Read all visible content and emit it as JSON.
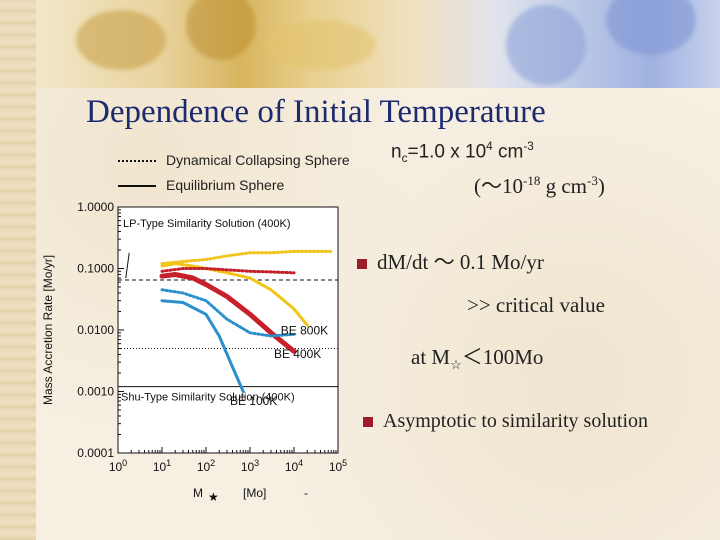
{
  "slide": {
    "title": "Dependence of Initial Temperature",
    "legend_dotted": "Dynamical Collapsing Sphere",
    "legend_solid": "Equilibrium Sphere",
    "nc": {
      "pre": "n",
      "sub": "c",
      "mid": "=1.0 x 10",
      "exp": "4",
      "post": " cm",
      "exp2": "-3"
    },
    "rho": {
      "pre": "(～10",
      "exp": "-18",
      "mid": " g cm",
      "exp2": "-3",
      "post": ")"
    },
    "bullet1": "dM/dt ～ 0.1 Mo/yr",
    "line2": ">> critical value",
    "line3": {
      "pre": "at M",
      "sub": "☆",
      "post": "＜100Mo"
    },
    "bullet2": "Asymptotic to similarity solution"
  },
  "colors": {
    "bullet": "#9b1b2a",
    "title": "#1e2a6e",
    "yellow": "#f2c418",
    "red": "#c8202a",
    "blue": "#2a8fcc"
  },
  "chart_data": {
    "type": "line",
    "xscale": "log",
    "yscale": "log",
    "xlim": [
      1,
      100000
    ],
    "ylim": [
      0.0001,
      1
    ],
    "xticks": [
      {
        "base": "10",
        "exp": "0"
      },
      {
        "base": "10",
        "exp": "1"
      },
      {
        "base": "10",
        "exp": "2"
      },
      {
        "base": "10",
        "exp": "3"
      },
      {
        "base": "10",
        "exp": "4"
      },
      {
        "base": "10",
        "exp": "5"
      }
    ],
    "yticks": [
      "0.0001",
      "0.0010",
      "0.0100",
      "0.1000",
      "1.0000"
    ],
    "ylabel": "Mass Accretion Rate  [Mo/yr]",
    "xlabel_pre": "M",
    "xlabel_star": "★",
    "xlabel_unit": "[Mo]",
    "xlabel_dash": "-",
    "reference_lines": [
      {
        "label": "LP-Type Similarity Solution (400K)",
        "y": 0.065,
        "style": "dashed"
      },
      {
        "label": "Shu-Type Similarity Solution (400K)",
        "y": 0.0012,
        "style": "solid"
      },
      {
        "y": 0.005,
        "style": "dotted"
      }
    ],
    "series": [
      {
        "name": "BE 800K",
        "color": "#f2c418",
        "style": "solid",
        "width": 3,
        "x": [
          10,
          20,
          50,
          100,
          300,
          1000,
          3000,
          10000,
          20000
        ],
        "y": [
          0.11,
          0.12,
          0.11,
          0.1,
          0.085,
          0.07,
          0.045,
          0.022,
          0.012
        ]
      },
      {
        "color": "#f2c418",
        "style": "dotted",
        "width": 3,
        "x": [
          10,
          30,
          100,
          300,
          1000,
          3000,
          10000,
          30000,
          70000
        ],
        "y": [
          0.12,
          0.13,
          0.14,
          0.16,
          0.18,
          0.18,
          0.19,
          0.19,
          0.19
        ]
      },
      {
        "name": "BE 400K",
        "color": "#c8202a",
        "style": "solid",
        "width": 5,
        "x": [
          10,
          20,
          50,
          100,
          300,
          1000,
          3000,
          10000
        ],
        "y": [
          0.075,
          0.08,
          0.07,
          0.055,
          0.035,
          0.018,
          0.009,
          0.0045
        ]
      },
      {
        "color": "#c8202a",
        "style": "dotted",
        "width": 3,
        "x": [
          10,
          30,
          100,
          300,
          1000,
          3000,
          10000
        ],
        "y": [
          0.09,
          0.1,
          0.1,
          0.095,
          0.09,
          0.088,
          0.085
        ]
      },
      {
        "name": "BE 100K",
        "color": "#2a8fcc",
        "style": "solid",
        "width": 3,
        "x": [
          10,
          30,
          100,
          200,
          400,
          700
        ],
        "y": [
          0.03,
          0.028,
          0.018,
          0.008,
          0.0025,
          0.001
        ]
      },
      {
        "color": "#2a8fcc",
        "style": "dotted",
        "width": 3,
        "x": [
          10,
          30,
          100,
          300,
          1000,
          3000,
          10000
        ],
        "y": [
          0.045,
          0.04,
          0.03,
          0.015,
          0.009,
          0.008,
          0.0085
        ]
      }
    ],
    "labels": [
      {
        "text": "BE 800K",
        "color": "#f2c418",
        "x": 5000,
        "y": 0.0085
      },
      {
        "text": "BE 400K",
        "color": "#c8202a",
        "x": 3500,
        "y": 0.0035
      },
      {
        "text": "BE 100K",
        "color": "#2a8fcc",
        "x": 350,
        "y": 0.0006
      }
    ]
  }
}
